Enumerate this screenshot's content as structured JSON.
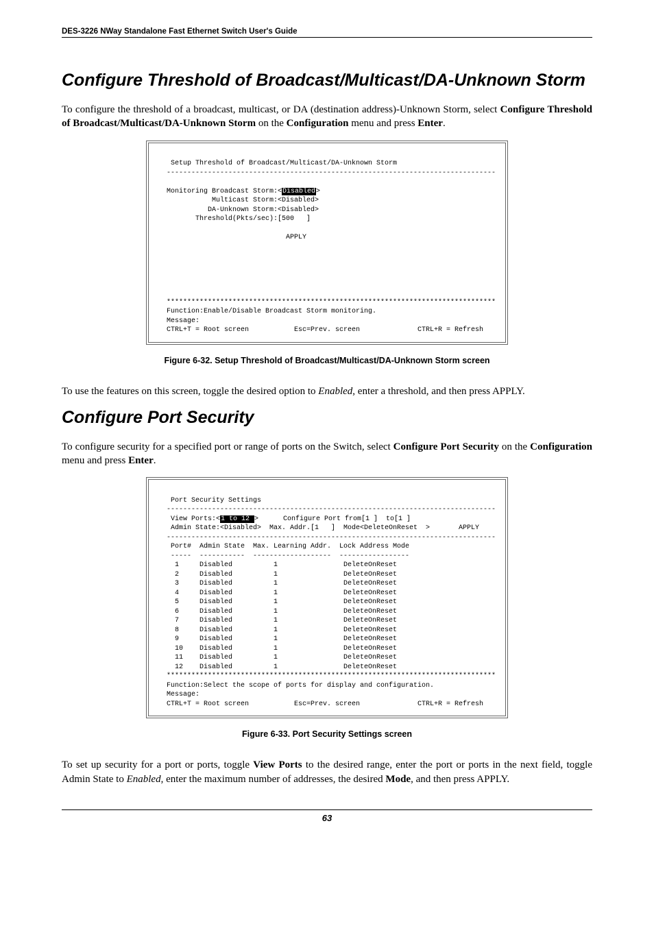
{
  "header": "DES-3226 NWay Standalone Fast Ethernet Switch User's Guide",
  "section1": {
    "title": "Configure Threshold of Broadcast/Multicast/DA-Unknown Storm",
    "intro_pre": "To configure the threshold of a broadcast, multicast, or DA (destination address)-Unknown Storm, select ",
    "intro_bold1": "Configure Threshold of Broadcast/Multicast/DA-Unknown Storm",
    "intro_mid": " on the ",
    "intro_bold2": "Configuration",
    "intro_post1": " menu and press ",
    "intro_bold3": "Enter",
    "intro_post2": ".",
    "terminal": {
      "title_row": "   Setup Threshold of Broadcast/Multicast/DA-Unknown Storm",
      "sep": "  --------------------------------------------------------------------------------",
      "l1a": "  Monitoring Broadcast Storm:<",
      "l1hl": "Disabled",
      "l1b": ">",
      "l2": "             Multicast Storm:<Disabled>",
      "l3": "            DA-Unknown Storm:<Disabled>",
      "l4": "         Threshold(Pkts/sec):[500   ]",
      "apply": "                               APPLY",
      "stars": "  ********************************************************************************",
      "func": "  Function:Enable/Disable Broadcast Storm monitoring.",
      "msg": "  Message:",
      "foot": "  CTRL+T = Root screen           Esc=Prev. screen              CTRL+R = Refresh"
    },
    "caption": "Figure 6-32.  Setup Threshold of Broadcast/Multicast/DA-Unknown Storm screen",
    "after_pre": "To use the features on this screen, toggle the desired option to ",
    "after_em": "Enabled",
    "after_post": ", enter a threshold, and then press APPLY."
  },
  "section2": {
    "title": "Configure Port Security",
    "intro_pre": "To configure security for a specified port or range of ports on the Switch, select ",
    "intro_bold1": "Configure Port Security",
    "intro_mid": " on the ",
    "intro_bold2": "Configuration",
    "intro_post1": " menu and press ",
    "intro_bold3": "Enter",
    "intro_post2": ".",
    "terminal": {
      "title_row": "   Port Security Settings",
      "sep": "  --------------------------------------------------------------------------------",
      "r1a": "   View Ports:<",
      "r1hl": "1 to 12 ",
      "r1b": ">      Configure Port from[1 ]  to[1 ]",
      "r2": "   Admin State:<Disabled>  Max. Addr.[1   ]  Mode<DeleteOnReset  >       APPLY",
      "hdr": "   Port#  Admin State  Max. Learning Addr.  Lock Address Mode",
      "hdrsep": "   -----  -----------  -------------------  -----------------",
      "rows": [
        "    1     Disabled          1                DeleteOnReset",
        "    2     Disabled          1                DeleteOnReset",
        "    3     Disabled          1                DeleteOnReset",
        "    4     Disabled          1                DeleteOnReset",
        "    5     Disabled          1                DeleteOnReset",
        "    6     Disabled          1                DeleteOnReset",
        "    7     Disabled          1                DeleteOnReset",
        "    8     Disabled          1                DeleteOnReset",
        "    9     Disabled          1                DeleteOnReset",
        "    10    Disabled          1                DeleteOnReset",
        "    11    Disabled          1                DeleteOnReset",
        "    12    Disabled          1                DeleteOnReset"
      ],
      "stars": "  ********************************************************************************",
      "func": "  Function:Select the scope of ports for display and configuration.",
      "msg": "  Message:",
      "foot": "  CTRL+T = Root screen           Esc=Prev. screen              CTRL+R = Refresh"
    },
    "caption": "Figure 6-33.  Port Security Settings screen",
    "after_pre": "To set up security for a port or ports, toggle ",
    "after_b1": "View Ports",
    "after_mid1": " to the desired range, enter the port or ports in the next field, toggle Admin State to ",
    "after_em": "Enabled",
    "after_mid2": ", enter the maximum number of addresses, the desired ",
    "after_b2": "Mode",
    "after_post": ", and then press APPLY."
  },
  "page_number": "63"
}
